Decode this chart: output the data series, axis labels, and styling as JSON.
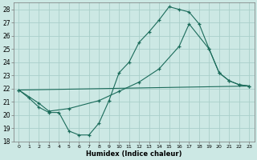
{
  "bg_color": "#cce8e4",
  "grid_color": "#aacfca",
  "line_color": "#1a6b5a",
  "xlabel": "Humidex (Indice chaleur)",
  "xlim": [
    -0.5,
    23.5
  ],
  "ylim": [
    18,
    28.5
  ],
  "yticks": [
    18,
    19,
    20,
    21,
    22,
    23,
    24,
    25,
    26,
    27,
    28
  ],
  "xticks": [
    0,
    1,
    2,
    3,
    4,
    5,
    6,
    7,
    8,
    9,
    10,
    11,
    12,
    13,
    14,
    15,
    16,
    17,
    18,
    19,
    20,
    21,
    22,
    23
  ],
  "line1_x": [
    0,
    1,
    2,
    3,
    4,
    5,
    6,
    7,
    8,
    9,
    10,
    11,
    12,
    13,
    14,
    15,
    16,
    17,
    18,
    19,
    20,
    21,
    22,
    23
  ],
  "line1_y": [
    21.9,
    21.3,
    20.6,
    20.2,
    20.2,
    18.8,
    18.5,
    18.5,
    19.4,
    21.1,
    23.2,
    24.0,
    25.5,
    26.3,
    27.2,
    28.2,
    28.0,
    27.8,
    26.9,
    25.0,
    23.2,
    22.6,
    22.3,
    22.2
  ],
  "line2_x": [
    0,
    23
  ],
  "line2_y": [
    21.9,
    22.2
  ],
  "line3_x": [
    0,
    2,
    3,
    5,
    8,
    10,
    12,
    14,
    16,
    17,
    19,
    20,
    21,
    22,
    23
  ],
  "line3_y": [
    21.9,
    20.9,
    20.3,
    20.5,
    21.1,
    21.8,
    22.5,
    23.5,
    25.2,
    26.9,
    25.0,
    23.2,
    22.6,
    22.3,
    22.2
  ]
}
